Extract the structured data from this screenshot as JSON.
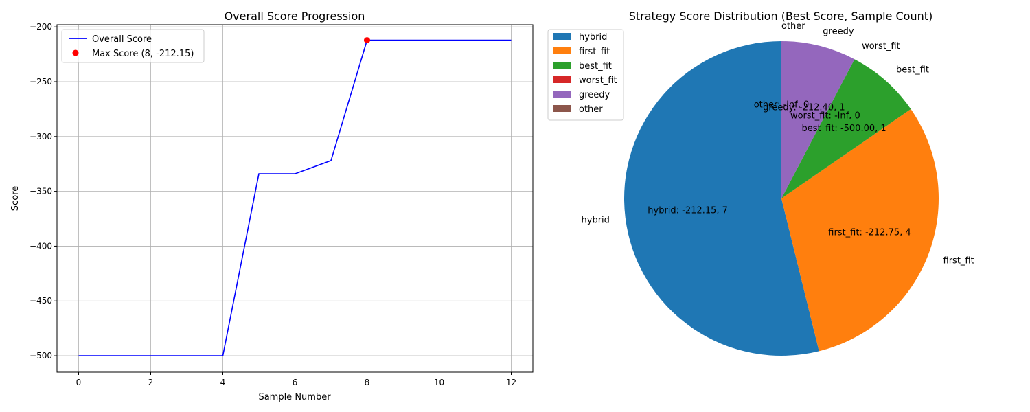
{
  "chart_data": [
    {
      "type": "line",
      "title": "Overall Score Progression",
      "xlabel": "Sample Number",
      "ylabel": "Score",
      "xlim": [
        -0.6,
        12.6
      ],
      "ylim": [
        -515,
        -198
      ],
      "xticks": [
        0,
        2,
        4,
        6,
        8,
        10,
        12
      ],
      "yticks": [
        -500,
        -450,
        -400,
        -350,
        -300,
        -250,
        -200
      ],
      "grid": true,
      "legend_position": "upper-left",
      "series": [
        {
          "name": "Overall Score",
          "color": "#0000ff",
          "x": [
            0,
            1,
            2,
            3,
            4,
            5,
            6,
            7,
            8,
            9,
            10,
            11,
            12
          ],
          "y": [
            -500,
            -500,
            -500,
            -500,
            -500,
            -334,
            -334,
            -322,
            -212.15,
            -212.15,
            -212.15,
            -212.15,
            -212.15
          ]
        }
      ],
      "highlight": {
        "name": "Max Score (8, -212.15)",
        "color": "#ff0000",
        "x": 8,
        "y": -212.15
      }
    },
    {
      "type": "pie",
      "title": "Strategy Score Distribution (Best Score, Sample Count)",
      "legend_position": "upper-left outside",
      "slices": [
        {
          "name": "hybrid",
          "value": 7,
          "best_score": "-212.15",
          "label": "hybrid: -212.15, 7",
          "color": "#1f77b4"
        },
        {
          "name": "first_fit",
          "value": 4,
          "best_score": "-212.75",
          "label": "first_fit: -212.75, 4",
          "color": "#ff7f0e"
        },
        {
          "name": "best_fit",
          "value": 1,
          "best_score": "-500.00",
          "label": "best_fit: -500.00, 1",
          "color": "#2ca02c"
        },
        {
          "name": "worst_fit",
          "value": 0,
          "best_score": "-inf",
          "label": "worst_fit: -inf, 0",
          "color": "#d62728"
        },
        {
          "name": "greedy",
          "value": 1,
          "best_score": "-212.40",
          "label": "greedy: -212.40, 1",
          "color": "#9467bd"
        },
        {
          "name": "other",
          "value": 0,
          "best_score": "-inf",
          "label": "other: -inf, 0",
          "color": "#8c564b"
        }
      ]
    }
  ]
}
